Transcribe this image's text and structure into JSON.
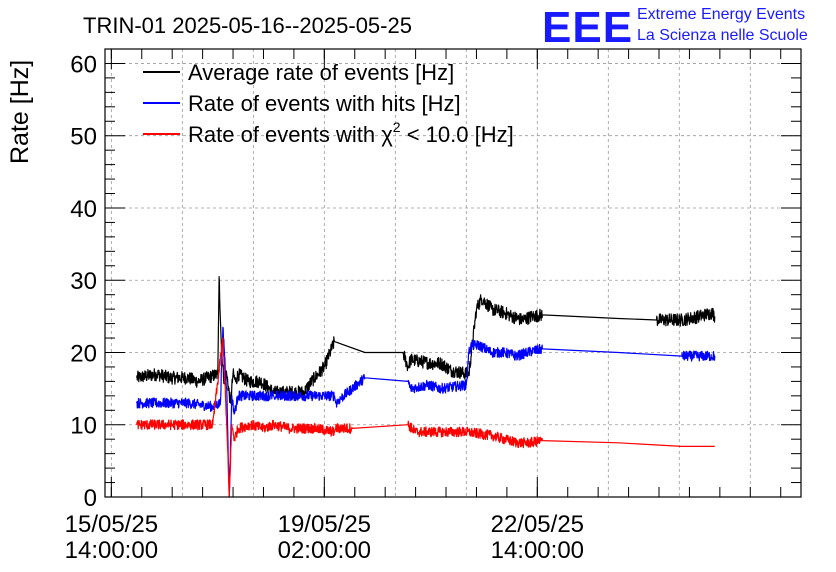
{
  "header": {
    "title": "TRIN-01 2025-05-16--2025-05-25",
    "brand_logo": "EEE",
    "brand_line1": "Extreme Energy Events",
    "brand_line2": "La Scienza nelle Scuole"
  },
  "chart_data": {
    "type": "line",
    "title": "TRIN-01 2025-05-16--2025-05-25",
    "xlabel": "",
    "ylabel": "Rate [Hz]",
    "ylim": [
      0,
      62
    ],
    "xlim_hours": [
      -2.5,
      272
    ],
    "x_unit": "hours since 15/05/25 14:00:00",
    "y_ticks": [
      "0",
      "10",
      "20",
      "30",
      "40",
      "50",
      "60"
    ],
    "y_tick_values": [
      0,
      10,
      20,
      30,
      40,
      50,
      60
    ],
    "x_ticks": [
      {
        "hours": 0,
        "line1": "15/05/25",
        "line2": "14:00:00"
      },
      {
        "hours": 84,
        "line1": "19/05/25",
        "line2": "02:00:00"
      },
      {
        "hours": 168,
        "line1": "22/05/25",
        "line2": "14:00:00"
      }
    ],
    "grid": true,
    "legend_position": "top-left",
    "legend": [
      {
        "label": "Average rate of events [Hz]",
        "color": "#000000"
      },
      {
        "label": "Rate of events with hits [Hz]",
        "color": "#0000ff"
      },
      {
        "label_prefix": "Rate of events with ",
        "label_symbol": "χ",
        "label_sup": "2",
        "label_suffix": " < 10.0 [Hz]",
        "color": "#ff0000"
      }
    ],
    "series": [
      {
        "name": "Average rate of events",
        "color": "#000000",
        "noise": 0.9,
        "x": [
          10,
          18,
          23,
          30,
          34,
          38,
          42,
          42.5,
          43.5,
          44.5,
          45.5,
          47,
          48,
          49,
          50,
          54,
          59,
          64,
          66,
          69,
          76,
          79,
          84,
          88,
          100,
          115,
          117,
          118,
          126,
          130,
          134,
          141,
          144,
          146,
          150,
          155,
          158,
          162,
          166,
          170,
          200,
          215,
          225,
          232,
          237,
          238
        ],
        "y": [
          16.5,
          17,
          16.5,
          16.5,
          16,
          16.5,
          17,
          30.5,
          20,
          16,
          17,
          13,
          17,
          16,
          17,
          16,
          16,
          14.5,
          14.5,
          14.5,
          14.5,
          16,
          18,
          21.5,
          20,
          20,
          18,
          19,
          18.5,
          18.5,
          17.5,
          17,
          26,
          27.5,
          26,
          25.5,
          25,
          24.5,
          25,
          25.2,
          24.7,
          24.5,
          24.5,
          25,
          25.5,
          25
        ]
      },
      {
        "name": "Rate of events with hits",
        "color": "#0000ff",
        "noise": 0.7,
        "x": [
          10,
          20,
          30,
          40,
          43,
          44,
          45.5,
          46.5,
          47.5,
          48.5,
          50,
          55,
          60,
          64,
          64.5,
          65,
          75,
          83,
          88,
          88.5,
          90,
          95,
          100,
          117,
          118,
          125,
          130,
          140,
          141,
          142,
          145,
          150,
          155,
          160,
          164,
          170,
          200,
          225,
          232,
          238
        ],
        "y": [
          13,
          13,
          13,
          12.5,
          13,
          23.5,
          15,
          0,
          14,
          11.5,
          14,
          14,
          14,
          14,
          13.5,
          14,
          14,
          14,
          14,
          13,
          13.5,
          15,
          16.5,
          16,
          15,
          15.5,
          15,
          15.5,
          20,
          21,
          21,
          20,
          20,
          19.5,
          20,
          20.5,
          20,
          19.5,
          19.5,
          19.5
        ]
      },
      {
        "name": "Rate of events with chi2 < 10.0",
        "color": "#ff0000",
        "noise": 0.7,
        "x": [
          10,
          20,
          30,
          40,
          44,
          45.5,
          46.5,
          47.5,
          48.5,
          50,
          55,
          60,
          64,
          70,
          80,
          88,
          88.5,
          95,
          117,
          120,
          130,
          140,
          150,
          160,
          165,
          170,
          200,
          225,
          238
        ],
        "y": [
          10,
          10,
          10,
          10,
          22,
          10,
          0,
          10,
          8,
          9.5,
          10,
          9.5,
          10,
          9.5,
          9.5,
          9,
          9.5,
          9.5,
          10,
          9,
          9,
          9,
          8.5,
          7.5,
          7.5,
          7.8,
          7.5,
          7,
          7
        ]
      }
    ]
  }
}
